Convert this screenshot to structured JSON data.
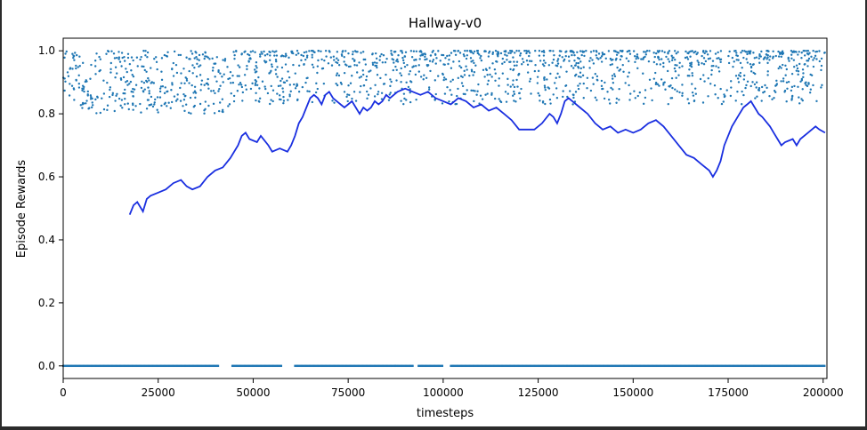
{
  "chart_data": {
    "type": "scatter",
    "title": "Hallway-v0",
    "xlabel": "timesteps",
    "ylabel": "Episode Rewards",
    "xlim": [
      0,
      201000
    ],
    "ylim": [
      -0.04,
      1.04
    ],
    "xticks": [
      0,
      25000,
      50000,
      75000,
      100000,
      125000,
      150000,
      175000,
      200000
    ],
    "xtick_labels": [
      "0",
      "25000",
      "50000",
      "75000",
      "100000",
      "125000",
      "150000",
      "175000",
      "200000"
    ],
    "yticks": [
      0.0,
      0.2,
      0.4,
      0.6,
      0.8,
      1.0
    ],
    "ytick_labels": [
      "0.0",
      "0.2",
      "0.4",
      "0.6",
      "0.8",
      "1.0"
    ],
    "grid": false,
    "legend": "none",
    "colors": {
      "points": "#1f77b4",
      "line": "#1a2fe0"
    },
    "series": [
      {
        "kind": "scatter",
        "description": "per-episode rewards; dense band of zero-reward episodes plus successful episodes between 0.8 and 1.0",
        "zero_band_segments": [
          [
            0,
            41000
          ],
          [
            44500,
            57500
          ],
          [
            61000,
            87500
          ],
          [
            87500,
            92000
          ],
          [
            93500,
            100000
          ],
          [
            102000,
            200500
          ]
        ],
        "zero_band_value": 0.0,
        "high_band": {
          "x_range": [
            0,
            200500
          ],
          "early_range": [
            0,
            45000
          ],
          "early_values": [
            0.8,
            1.0
          ],
          "late_values": [
            0.83,
            1.0
          ]
        }
      },
      {
        "kind": "line",
        "description": "smoothed episode reward",
        "points": [
          [
            17500,
            0.48
          ],
          [
            18500,
            0.51
          ],
          [
            19500,
            0.52
          ],
          [
            20500,
            0.5
          ],
          [
            21000,
            0.49
          ],
          [
            22000,
            0.53
          ],
          [
            23000,
            0.54
          ],
          [
            25000,
            0.55
          ],
          [
            27000,
            0.56
          ],
          [
            29000,
            0.58
          ],
          [
            31000,
            0.59
          ],
          [
            32500,
            0.57
          ],
          [
            34000,
            0.56
          ],
          [
            36000,
            0.57
          ],
          [
            38000,
            0.6
          ],
          [
            40000,
            0.62
          ],
          [
            42000,
            0.63
          ],
          [
            44000,
            0.66
          ],
          [
            46000,
            0.7
          ],
          [
            47000,
            0.73
          ],
          [
            48000,
            0.74
          ],
          [
            49000,
            0.72
          ],
          [
            51000,
            0.71
          ],
          [
            52000,
            0.73
          ],
          [
            54000,
            0.7
          ],
          [
            55000,
            0.68
          ],
          [
            57000,
            0.69
          ],
          [
            59000,
            0.68
          ],
          [
            60000,
            0.7
          ],
          [
            61000,
            0.73
          ],
          [
            62000,
            0.77
          ],
          [
            63000,
            0.79
          ],
          [
            64000,
            0.82
          ],
          [
            65000,
            0.85
          ],
          [
            66000,
            0.86
          ],
          [
            67000,
            0.85
          ],
          [
            68000,
            0.83
          ],
          [
            69000,
            0.86
          ],
          [
            70000,
            0.87
          ],
          [
            71000,
            0.85
          ],
          [
            72000,
            0.84
          ],
          [
            73000,
            0.83
          ],
          [
            74000,
            0.82
          ],
          [
            75000,
            0.83
          ],
          [
            76000,
            0.84
          ],
          [
            77000,
            0.82
          ],
          [
            78000,
            0.8
          ],
          [
            79000,
            0.82
          ],
          [
            80000,
            0.81
          ],
          [
            81000,
            0.82
          ],
          [
            82000,
            0.84
          ],
          [
            83000,
            0.83
          ],
          [
            84000,
            0.84
          ],
          [
            85000,
            0.86
          ],
          [
            86000,
            0.85
          ],
          [
            88000,
            0.87
          ],
          [
            90000,
            0.88
          ],
          [
            92000,
            0.87
          ],
          [
            94000,
            0.86
          ],
          [
            96000,
            0.87
          ],
          [
            98000,
            0.85
          ],
          [
            100000,
            0.84
          ],
          [
            102000,
            0.83
          ],
          [
            104000,
            0.85
          ],
          [
            106000,
            0.84
          ],
          [
            108000,
            0.82
          ],
          [
            110000,
            0.83
          ],
          [
            112000,
            0.81
          ],
          [
            114000,
            0.82
          ],
          [
            116000,
            0.8
          ],
          [
            118000,
            0.78
          ],
          [
            120000,
            0.75
          ],
          [
            122000,
            0.75
          ],
          [
            124000,
            0.75
          ],
          [
            126000,
            0.77
          ],
          [
            128000,
            0.8
          ],
          [
            129000,
            0.79
          ],
          [
            130000,
            0.77
          ],
          [
            131000,
            0.8
          ],
          [
            132000,
            0.84
          ],
          [
            133000,
            0.85
          ],
          [
            134000,
            0.84
          ],
          [
            136000,
            0.82
          ],
          [
            138000,
            0.8
          ],
          [
            140000,
            0.77
          ],
          [
            142000,
            0.75
          ],
          [
            144000,
            0.76
          ],
          [
            146000,
            0.74
          ],
          [
            148000,
            0.75
          ],
          [
            150000,
            0.74
          ],
          [
            152000,
            0.75
          ],
          [
            154000,
            0.77
          ],
          [
            156000,
            0.78
          ],
          [
            158000,
            0.76
          ],
          [
            160000,
            0.73
          ],
          [
            162000,
            0.7
          ],
          [
            164000,
            0.67
          ],
          [
            166000,
            0.66
          ],
          [
            168000,
            0.64
          ],
          [
            170000,
            0.62
          ],
          [
            171000,
            0.6
          ],
          [
            172000,
            0.62
          ],
          [
            173000,
            0.65
          ],
          [
            174000,
            0.7
          ],
          [
            176000,
            0.76
          ],
          [
            178000,
            0.8
          ],
          [
            179000,
            0.82
          ],
          [
            180000,
            0.83
          ],
          [
            181000,
            0.84
          ],
          [
            182000,
            0.82
          ],
          [
            183000,
            0.8
          ],
          [
            184000,
            0.79
          ],
          [
            186000,
            0.76
          ],
          [
            187000,
            0.74
          ],
          [
            188000,
            0.72
          ],
          [
            189000,
            0.7
          ],
          [
            190000,
            0.71
          ],
          [
            192000,
            0.72
          ],
          [
            193000,
            0.7
          ],
          [
            194000,
            0.72
          ],
          [
            196000,
            0.74
          ],
          [
            198000,
            0.76
          ],
          [
            199000,
            0.75
          ],
          [
            200500,
            0.74
          ]
        ]
      }
    ]
  }
}
